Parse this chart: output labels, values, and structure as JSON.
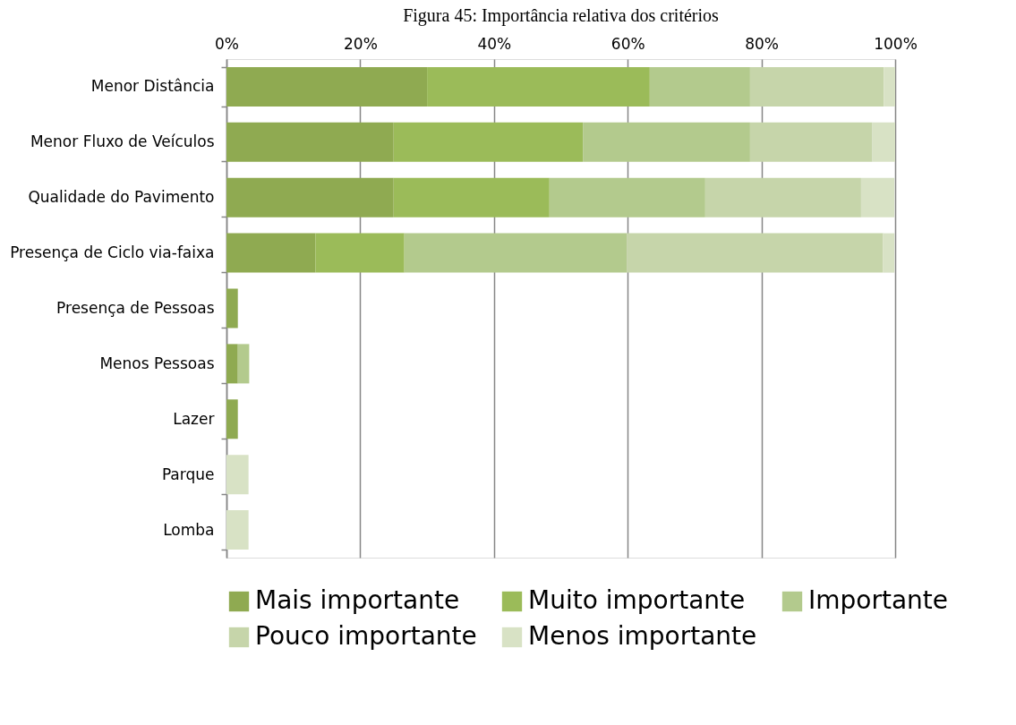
{
  "chart_data": {
    "type": "bar",
    "orientation": "horizontal",
    "stacked": true,
    "title": "Figura 45: Importância relativa dos critérios",
    "categories": [
      "Menor Distância",
      "Menor Fluxo de Veículos",
      "Qualidade do Pavimento",
      "Presença de Ciclo via-faixa",
      "Presença de Pessoas",
      "Menos Pessoas",
      "Lazer",
      "Parque",
      "Lomba"
    ],
    "series": [
      {
        "name": "Mais importante",
        "color": "#8faa51",
        "values": [
          30,
          25,
          25,
          13.3,
          1.7,
          1.7,
          1.7,
          0,
          0
        ]
      },
      {
        "name": "Muito importante",
        "color": "#9bbb59",
        "values": [
          33.3,
          28.3,
          23.3,
          13.3,
          0,
          0,
          0,
          0,
          0
        ]
      },
      {
        "name": "Importante",
        "color": "#b3ca8d",
        "values": [
          15,
          25,
          23.3,
          33.3,
          0,
          1.7,
          0,
          0,
          0
        ]
      },
      {
        "name": "Pouco importante",
        "color": "#c6d5aa",
        "values": [
          20,
          18.3,
          23.3,
          38.3,
          0,
          0,
          0,
          0,
          0
        ]
      },
      {
        "name": "Menos importante",
        "color": "#d8e2c5",
        "values": [
          1.7,
          3.4,
          5.0,
          1.7,
          0,
          0,
          0,
          3.3,
          3.3
        ]
      }
    ],
    "xlim": [
      0,
      100
    ],
    "xticks": [
      {
        "value": 0,
        "label": "0%"
      },
      {
        "value": 20,
        "label": "20%"
      },
      {
        "value": 40,
        "label": "40%"
      },
      {
        "value": 60,
        "label": "60%"
      },
      {
        "value": 80,
        "label": "80%"
      },
      {
        "value": 100,
        "label": "100%"
      }
    ],
    "grid": "x",
    "legend": "bottom"
  }
}
